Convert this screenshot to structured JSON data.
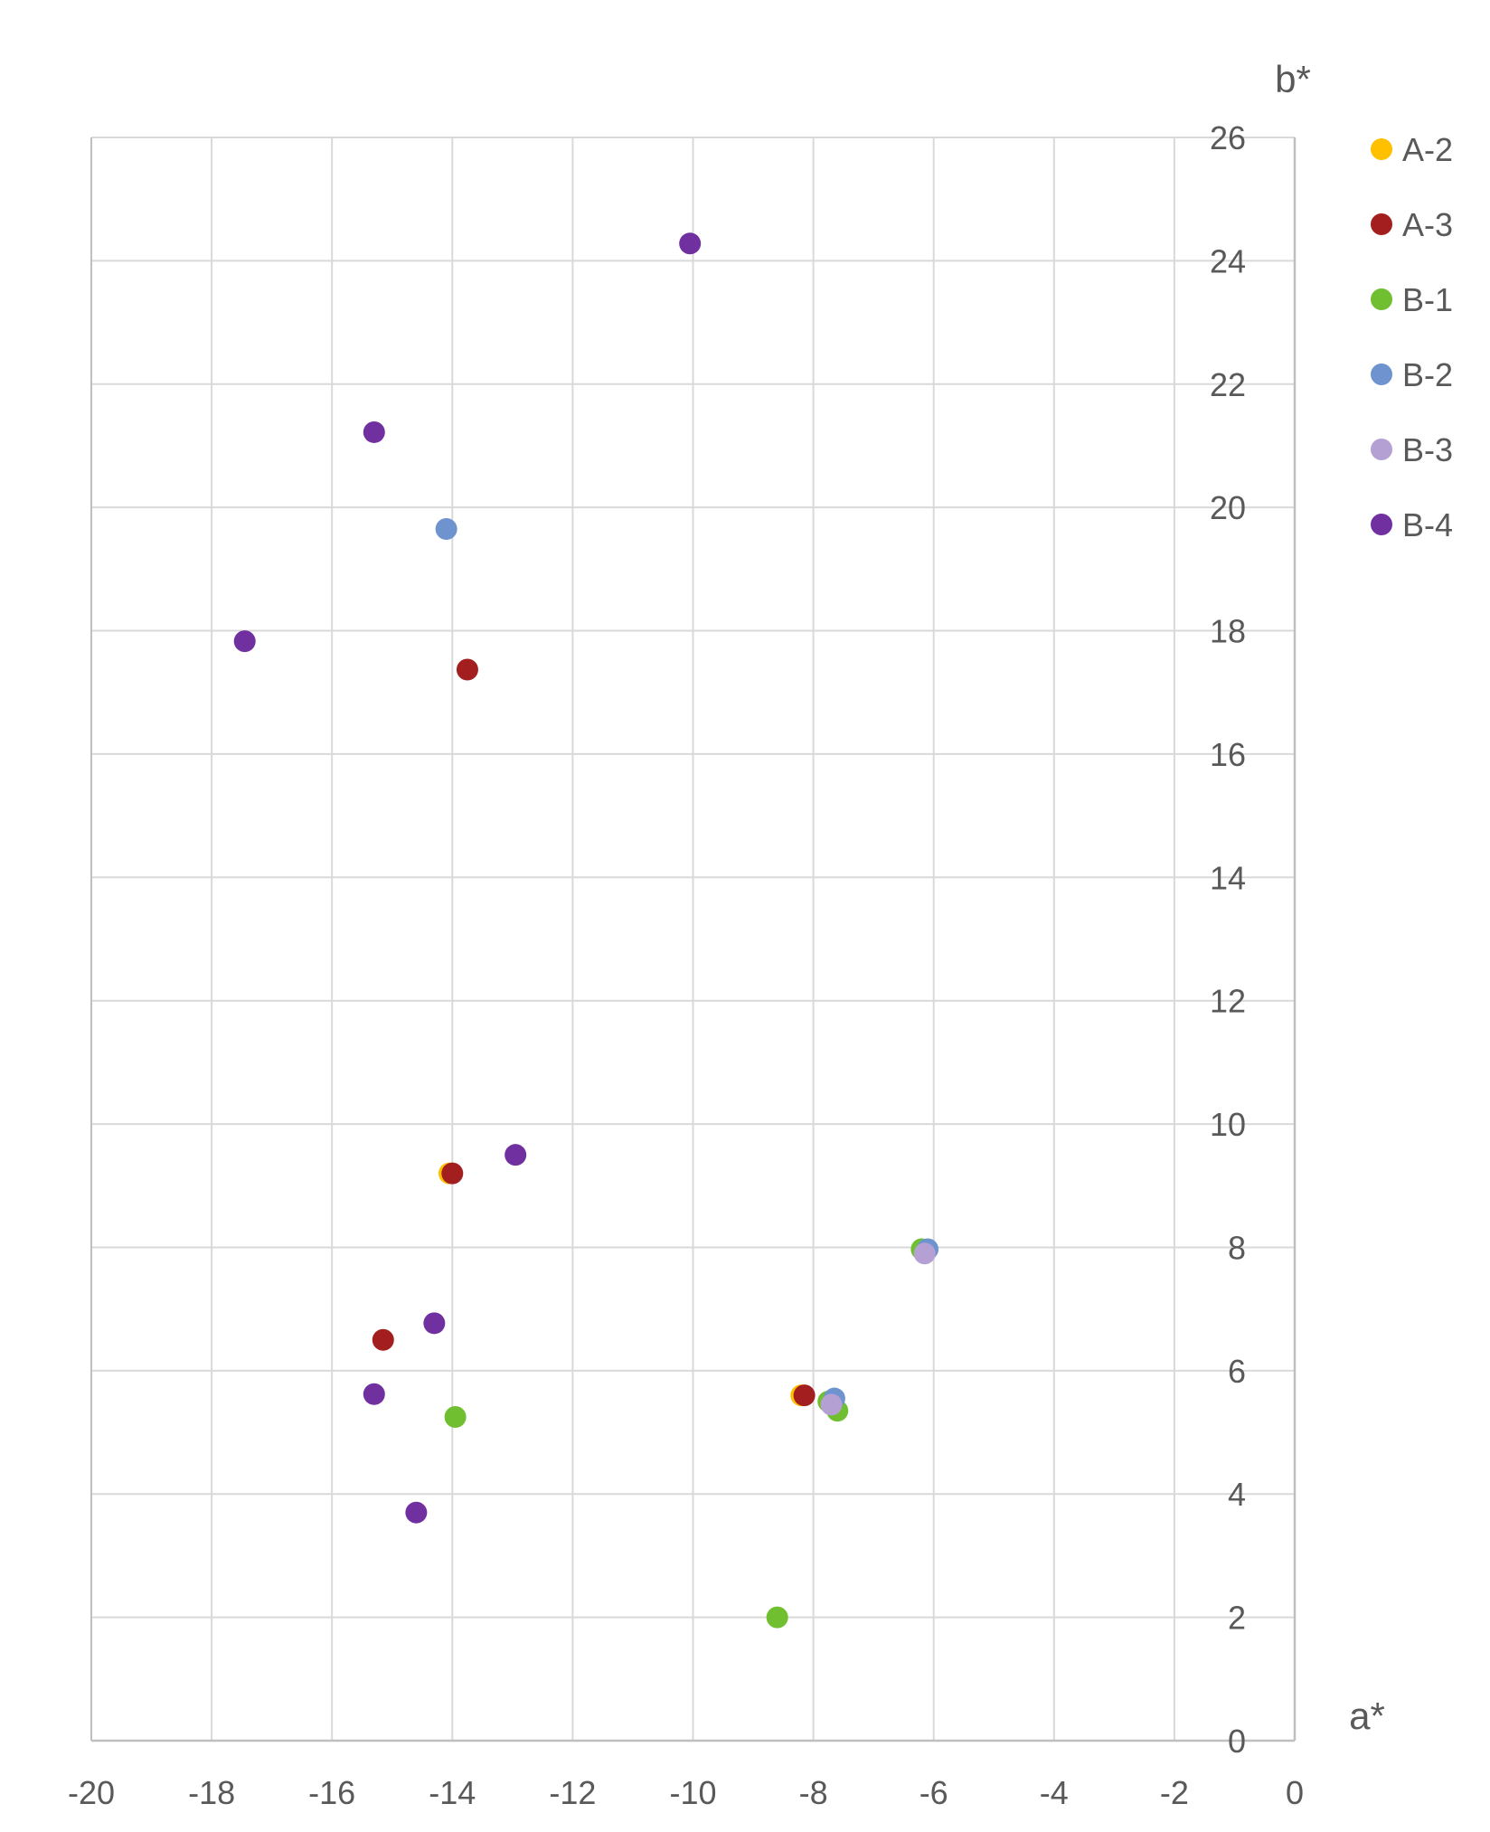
{
  "chart_data": {
    "type": "scatter",
    "title": "",
    "xlabel": "a*",
    "ylabel": "b*",
    "xlim": [
      -20,
      0
    ],
    "ylim": [
      0,
      26
    ],
    "x_ticks": [
      "-20",
      "-18",
      "-16",
      "-14",
      "-12",
      "-10",
      "-8",
      "-6",
      "-4",
      "-2",
      "0"
    ],
    "y_ticks": [
      "0",
      "2",
      "4",
      "6",
      "8",
      "10",
      "12",
      "14",
      "16",
      "18",
      "20",
      "22",
      "24",
      "26"
    ],
    "grid": true,
    "legend_position": "right",
    "series": [
      {
        "name": "A-2",
        "color": "#FFC000",
        "points": [
          [
            -14.05,
            9.2
          ],
          [
            -8.2,
            5.6
          ]
        ]
      },
      {
        "name": "A-3",
        "color": "#A31F1F",
        "points": [
          [
            -13.75,
            17.37
          ],
          [
            -15.15,
            6.5
          ],
          [
            -14.0,
            9.2
          ],
          [
            -8.15,
            5.6
          ]
        ]
      },
      {
        "name": "B-1",
        "color": "#70BF30",
        "points": [
          [
            -13.95,
            5.25
          ],
          [
            -8.6,
            2.0
          ],
          [
            -7.75,
            5.5
          ],
          [
            -7.6,
            5.35
          ],
          [
            -6.2,
            7.97
          ]
        ]
      },
      {
        "name": "B-2",
        "color": "#6F93CE",
        "points": [
          [
            -14.1,
            19.65
          ],
          [
            -7.65,
            5.55
          ],
          [
            -6.1,
            7.97
          ]
        ]
      },
      {
        "name": "B-3",
        "color": "#B4A0D2",
        "points": [
          [
            -6.15,
            7.9
          ],
          [
            -7.7,
            5.45
          ]
        ]
      },
      {
        "name": "B-4",
        "color": "#7030A0",
        "points": [
          [
            -10.05,
            24.28
          ],
          [
            -15.3,
            21.22
          ],
          [
            -17.45,
            17.83
          ],
          [
            -12.95,
            9.5
          ],
          [
            -14.3,
            6.77
          ],
          [
            -15.3,
            5.62
          ],
          [
            -14.6,
            3.7
          ]
        ]
      }
    ]
  },
  "legend": {
    "items": [
      "A-2",
      "A-3",
      "B-1",
      "B-2",
      "B-3",
      "B-4"
    ]
  }
}
